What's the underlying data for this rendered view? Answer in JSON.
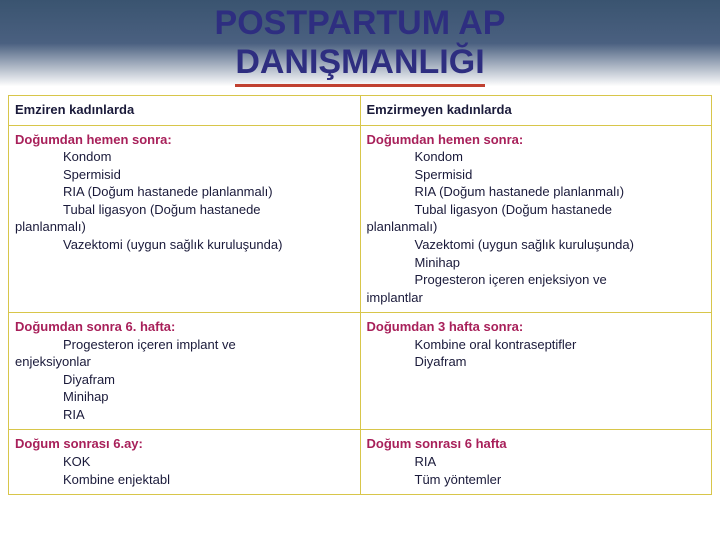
{
  "slide": {
    "title_line1": "POSTPARTUM  AP",
    "title_line2": "DANIŞMANLIĞI",
    "title_color": "#2e2e80",
    "underline_color": "#c04030",
    "table": {
      "border_color": "#d8c64a",
      "header_text_color": "#a8205a",
      "body_text_color": "#1a1a3a",
      "font_family": "Comic Sans MS",
      "columns": [
        {
          "header": "Emziren kadınlarda"
        },
        {
          "header": "Emzirmeyen kadınlarda"
        }
      ],
      "rows": [
        {
          "left": {
            "lead": "Doğumdan hemen sonra:",
            "items": [
              "Kondom",
              "Spermisid",
              "RIA (Doğum hastanede planlanmalı)",
              "Tubal ligasyon (Doğum hastanede"
            ],
            "flush_items": [
              "planlanmalı)"
            ],
            "items2": [
              "Vazektomi (uygun sağlık kuruluşunda)"
            ],
            "flush_items2": []
          },
          "right": {
            "lead": "Doğumdan hemen sonra:",
            "items": [
              "Kondom",
              "Spermisid",
              "RIA (Doğum hastanede planlanmalı)",
              "Tubal ligasyon (Doğum hastanede"
            ],
            "flush_items": [
              "planlanmalı)"
            ],
            "items2": [
              "Vazektomi (uygun sağlık kuruluşunda)",
              "Minihap",
              "Progesteron içeren enjeksiyon ve"
            ],
            "flush_items2": [
              "implantlar"
            ]
          }
        },
        {
          "left": {
            "lead": "Doğumdan sonra 6. hafta:",
            "items": [
              "Progesteron içeren implant ve"
            ],
            "flush_items": [
              "enjeksiyonlar"
            ],
            "items2": [
              "Diyafram",
              "Minihap",
              "RIA"
            ],
            "flush_items2": []
          },
          "right": {
            "lead": "Doğumdan 3 hafta sonra:",
            "items": [
              "Kombine oral kontraseptifler",
              "Diyafram"
            ],
            "flush_items": [],
            "items2": [],
            "flush_items2": []
          }
        },
        {
          "left": {
            "lead": "Doğum sonrası 6.ay:",
            "items": [
              "KOK",
              "Kombine enjektabl"
            ],
            "flush_items": [],
            "items2": [],
            "flush_items2": []
          },
          "right": {
            "lead": "Doğum sonrası 6 hafta",
            "items": [
              "RIA",
              "Tüm yöntemler"
            ],
            "flush_items": [],
            "items2": [],
            "flush_items2": []
          }
        }
      ]
    }
  }
}
